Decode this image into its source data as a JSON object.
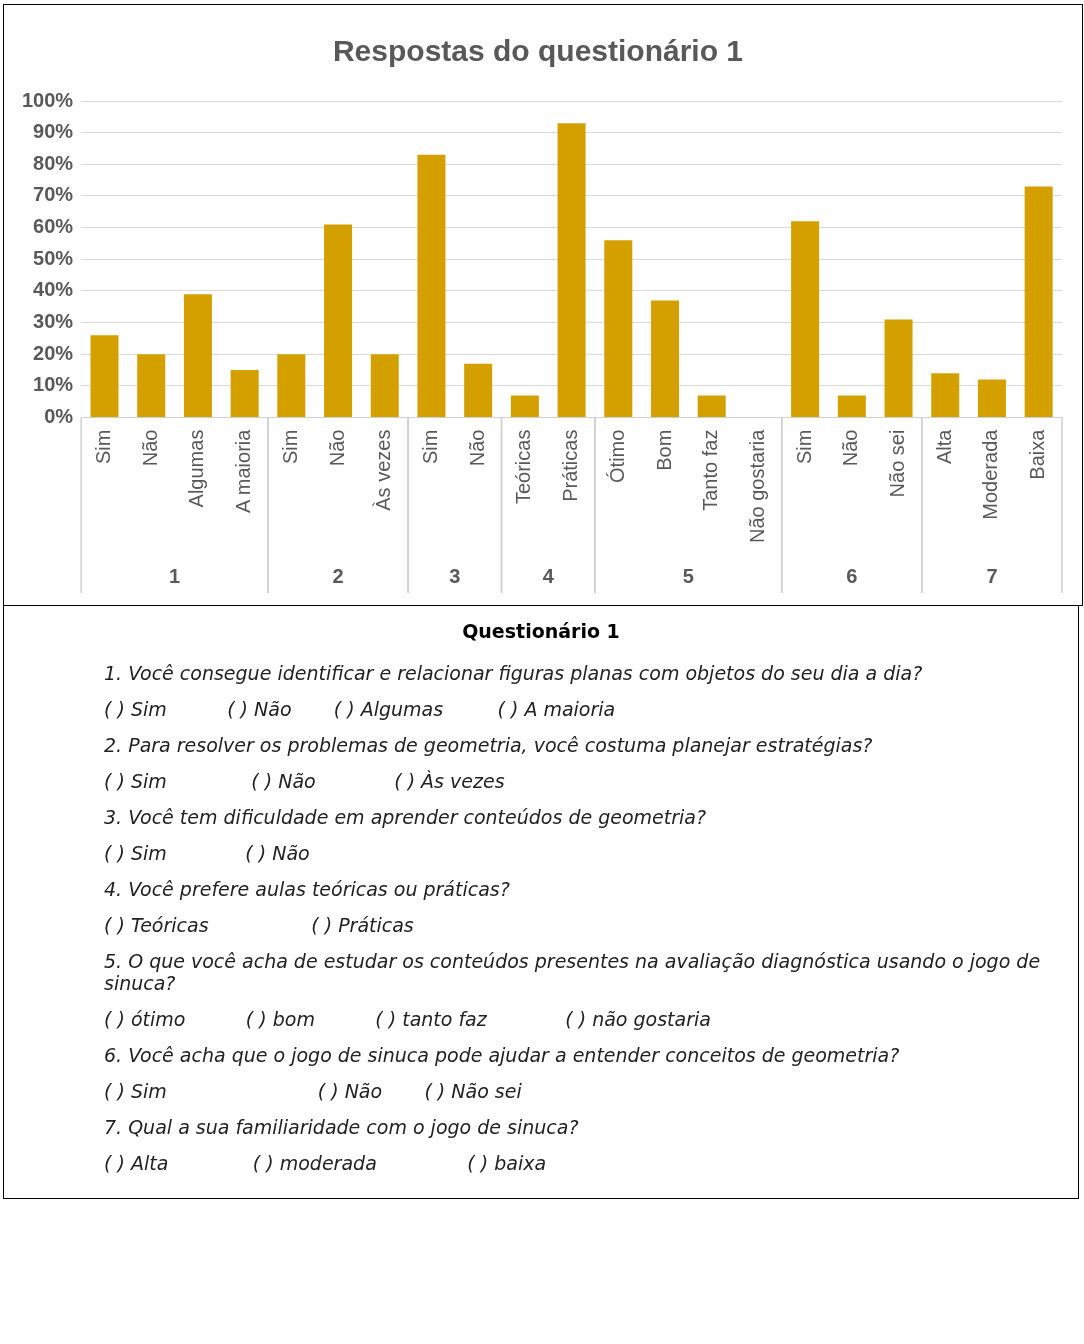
{
  "chart_data": {
    "type": "bar",
    "title": "Respostas do questionário 1",
    "categories": [
      "Sim",
      "Não",
      "Algumas",
      "A maioria",
      "Sim",
      "Não",
      "Às vezes",
      "Sim",
      "Não",
      "Teóricas",
      "Práticas",
      "Ótimo",
      "Bom",
      "Tanto faz",
      "Não gostaria",
      "Sim",
      "Não",
      "Não sei",
      "Alta",
      "Moderada",
      "Baixa"
    ],
    "series": [
      {
        "color": "#d4a000",
        "values": [
          26,
          20,
          39,
          15,
          null,
          null,
          null,
          null,
          null,
          null,
          null,
          null,
          null,
          null,
          null,
          null,
          null,
          null,
          null,
          null,
          null
        ]
      },
      {
        "color": "#d4a000",
        "values": [
          null,
          null,
          null,
          null,
          20,
          61,
          20,
          null,
          null,
          null,
          null,
          null,
          null,
          null,
          null,
          null,
          null,
          null,
          null,
          null,
          null
        ]
      },
      {
        "color": "#d4a000",
        "values": [
          null,
          null,
          null,
          null,
          null,
          null,
          null,
          83,
          17,
          null,
          null,
          null,
          null,
          null,
          null,
          null,
          null,
          null,
          null,
          null,
          null
        ]
      },
      {
        "color": "#d4a000",
        "values": [
          null,
          null,
          null,
          null,
          null,
          null,
          null,
          null,
          null,
          7,
          93,
          null,
          null,
          null,
          null,
          null,
          null,
          null,
          null,
          null,
          null
        ]
      },
      {
        "color": "#d4a000",
        "values": [
          null,
          null,
          null,
          null,
          null,
          null,
          null,
          null,
          null,
          null,
          null,
          56,
          37,
          7,
          0,
          null,
          null,
          null,
          null,
          null,
          null
        ]
      },
      {
        "color": "#d4a000",
        "values": [
          null,
          null,
          null,
          null,
          null,
          null,
          null,
          null,
          null,
          null,
          null,
          null,
          null,
          null,
          null,
          62,
          7,
          31,
          null,
          null,
          null
        ]
      },
      {
        "color": "#d4a000",
        "values": [
          null,
          null,
          null,
          null,
          null,
          null,
          null,
          null,
          null,
          null,
          null,
          null,
          null,
          null,
          null,
          null,
          null,
          null,
          14,
          12,
          73
        ]
      }
    ],
    "ylim": [
      0,
      100
    ],
    "yticks": [
      {
        "value": 0,
        "label": "0%"
      },
      {
        "value": 10,
        "label": "10%"
      },
      {
        "value": 20,
        "label": "20%"
      },
      {
        "value": 30,
        "label": "30%"
      },
      {
        "value": 40,
        "label": "40%"
      },
      {
        "value": 50,
        "label": "50%"
      },
      {
        "value": 60,
        "label": "60%"
      },
      {
        "value": 70,
        "label": "70%"
      },
      {
        "value": 80,
        "label": "80%"
      },
      {
        "value": 90,
        "label": "90%"
      },
      {
        "value": 100,
        "label": "100%"
      }
    ],
    "grid": "y",
    "legend": false,
    "annotations": [
      "1",
      "2",
      "3",
      "4",
      "5",
      "6",
      "7",
      "Questionário 1",
      "1. Você consegue identificar e relacionar figuras planas com objetos do seu dia a dia?",
      "( ) Sim          ( ) Não       ( ) Algumas         ( ) A maioria",
      "2. Para resolver os problemas de geometria, você costuma planejar estratégias?",
      "( ) Sim              ( ) Não             ( ) Às vezes",
      "3. Você tem dificuldade em aprender conteúdos de geometria?",
      "( ) Sim             ( ) Não",
      "4. Você prefere aulas teóricas ou práticas?",
      "( ) Teóricas                 ( ) Práticas",
      "5. O que você acha de estudar os conteúdos presentes na avaliação diagnóstica usando o jogo de sinuca?",
      "( ) ótimo          ( ) bom          ( ) tanto faz             ( ) não gostaria",
      "6. Você acha que o jogo de sinuca pode ajudar a entender conceitos de geometria?",
      "( ) Sim                         ( ) Não       ( ) Não sei",
      "7. Qual a sua familiaridade com o jogo de sinuca?",
      "( ) Alta              ( ) moderada               ( ) baixa"
    ]
  }
}
